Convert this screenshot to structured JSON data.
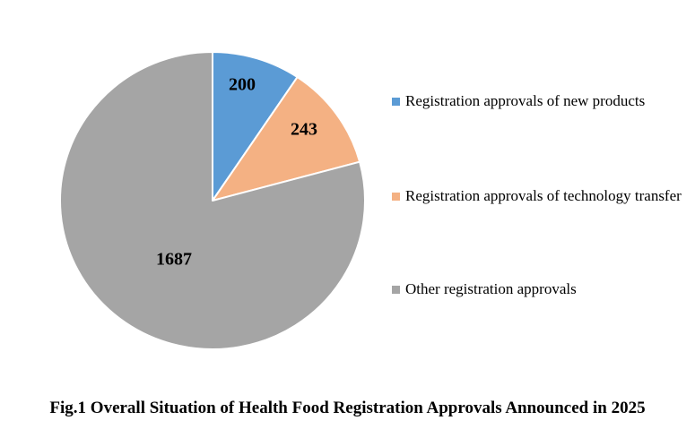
{
  "chart_data": {
    "type": "pie",
    "title": "Fig.1 Overall Situation of Health Food Registration Approvals Announced in 2025",
    "start_angle_deg": 0,
    "direction": "clockwise",
    "legend_position": "right",
    "data_labels": "values",
    "background_color": "#FFFFFF",
    "separator_color": "#FFFFFF",
    "label_text_color": "#000000",
    "slices": [
      {
        "label": "Registration approvals of new products",
        "value": 200,
        "color": "#5B9BD5"
      },
      {
        "label": "Registration approvals of technology transfer",
        "value": 243,
        "color": "#F4B183"
      },
      {
        "label": "Other registration approvals",
        "value": 1687,
        "color": "#A5A5A5"
      }
    ]
  }
}
